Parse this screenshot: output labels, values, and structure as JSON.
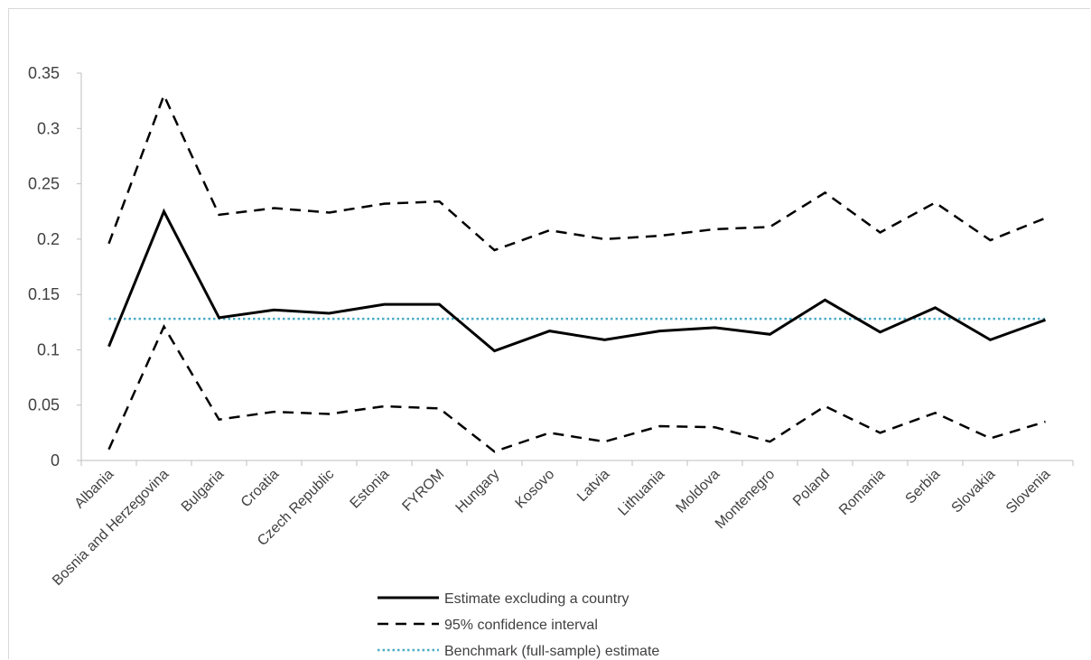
{
  "chart_data": {
    "type": "line",
    "title": "",
    "xlabel": "",
    "ylabel": "",
    "ylim": [
      0,
      0.35
    ],
    "y_ticks": [
      "0",
      "0.05",
      "0.1",
      "0.15",
      "0.2",
      "0.25",
      "0.3",
      "0.35"
    ],
    "y_tick_values": [
      0,
      0.05,
      0.1,
      0.15,
      0.2,
      0.25,
      0.3,
      0.35
    ],
    "categories": [
      "Albania",
      "Bosnia and Herzegovina",
      "Bulgaria",
      "Croatia",
      "Czech Republic",
      "Estonia",
      "FYROM",
      "Hungary",
      "Kosovo",
      "Latvia",
      "Lithuania",
      "Moldova",
      "Montenegro",
      "Poland",
      "Romania",
      "Serbia",
      "Slovakia",
      "Slovenia"
    ],
    "grid": false,
    "legend_position": "bottom",
    "series": [
      {
        "name": "Estimate excluding a country",
        "style": "solid",
        "color": "#000000",
        "values": [
          0.103,
          0.225,
          0.129,
          0.136,
          0.133,
          0.141,
          0.141,
          0.099,
          0.117,
          0.109,
          0.117,
          0.12,
          0.114,
          0.145,
          0.116,
          0.138,
          0.109,
          0.127
        ]
      },
      {
        "name": "95% confidence interval",
        "style": "dashed",
        "color": "#000000",
        "values": [
          0.196,
          0.33,
          0.222,
          0.228,
          0.224,
          0.232,
          0.234,
          0.19,
          0.208,
          0.2,
          0.203,
          0.209,
          0.211,
          0.242,
          0.206,
          0.233,
          0.199,
          0.219
        ]
      },
      {
        "name": "",
        "style": "dashed",
        "color": "#000000",
        "values": [
          0.01,
          0.121,
          0.037,
          0.044,
          0.042,
          0.049,
          0.047,
          0.008,
          0.025,
          0.017,
          0.031,
          0.03,
          0.017,
          0.049,
          0.025,
          0.043,
          0.02,
          0.035
        ]
      },
      {
        "name": "Benchmark (full-sample) estimate",
        "style": "dotted",
        "color": "#4bacc6",
        "values": [
          0.128,
          0.128,
          0.128,
          0.128,
          0.128,
          0.128,
          0.128,
          0.128,
          0.128,
          0.128,
          0.128,
          0.128,
          0.128,
          0.128,
          0.128,
          0.128,
          0.128,
          0.128
        ]
      }
    ]
  }
}
